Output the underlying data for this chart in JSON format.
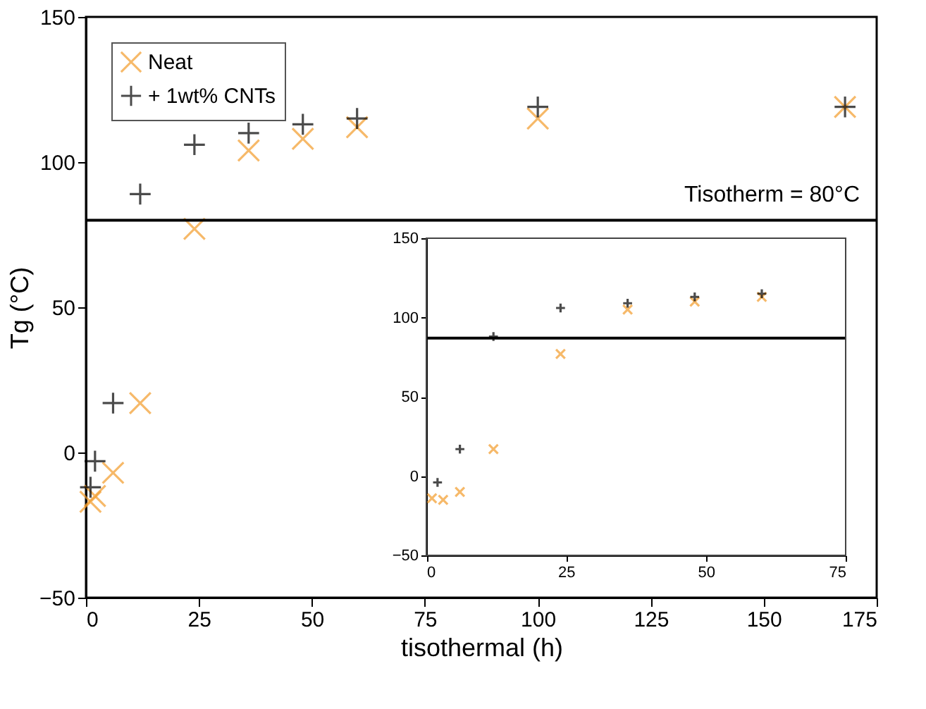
{
  "chart_data": [
    {
      "type": "scatter",
      "xlabel": "tisothermal (h)",
      "ylabel": "Tg (°C)",
      "xlim": [
        0,
        175
      ],
      "ylim": [
        -50,
        150
      ],
      "xticks": [
        0,
        25,
        50,
        75,
        100,
        125,
        150,
        175
      ],
      "yticks": [
        -50,
        0,
        50,
        100,
        150
      ],
      "legend": "top left",
      "grid": false,
      "series": [
        {
          "name": "Neat",
          "color": "#f39c2b",
          "marker": "x",
          "x": [
            1,
            2,
            6,
            12,
            24,
            36,
            48,
            60,
            100,
            168
          ],
          "values": [
            -17,
            -15,
            -7,
            17,
            77,
            104,
            108,
            112,
            115,
            119
          ]
        },
        {
          "name": "+ 1wt% CNTs",
          "color": "#000000",
          "marker": "cross",
          "x": [
            1,
            2,
            6,
            12,
            24,
            36,
            48,
            60,
            100,
            168
          ],
          "values": [
            -12,
            -3,
            17,
            89,
            106,
            110,
            113,
            115,
            119,
            119
          ]
        }
      ],
      "ref_lines": [
        {
          "axis": "y",
          "value": 80,
          "label": "Tisotherm = 80°C",
          "color": "#000000"
        }
      ]
    },
    {
      "type": "scatter",
      "xlim": [
        0,
        75
      ],
      "ylim": [
        -50,
        150
      ],
      "xticks": [
        0,
        25,
        50,
        75
      ],
      "yticks": [
        -50,
        0,
        50,
        100,
        150
      ],
      "legend": false,
      "grid": false,
      "series": [
        {
          "color": "#f39c2b",
          "marker": "x",
          "x": [
            1,
            3,
            6,
            12,
            24,
            36,
            48,
            60
          ],
          "values": [
            -14,
            -15,
            -10,
            17,
            77,
            105,
            110,
            113
          ]
        },
        {
          "color": "#000000",
          "marker": "cross",
          "x": [
            2,
            6,
            12,
            24,
            36,
            48,
            60
          ],
          "values": [
            -4,
            17,
            88,
            106,
            109,
            113,
            115
          ]
        }
      ],
      "ref_lines": [
        {
          "axis": "y",
          "value": 87,
          "color": "#000000"
        }
      ]
    }
  ]
}
